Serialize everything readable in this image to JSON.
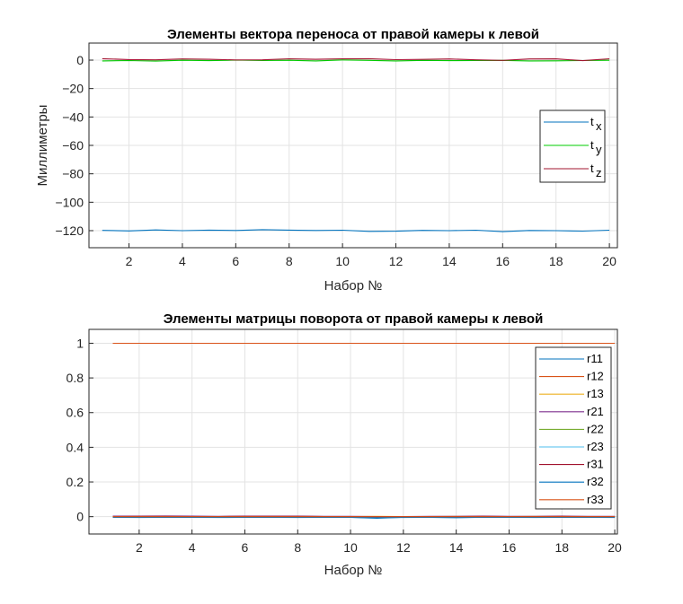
{
  "chart_data": [
    {
      "type": "line",
      "title": "Элементы вектора переноса от правой камеры к левой",
      "xlabel": "Набор №",
      "ylabel": "Миллиметры",
      "xlim": [
        0.5,
        20.3
      ],
      "ylim": [
        -132,
        12
      ],
      "xticks": [
        2,
        4,
        6,
        8,
        10,
        12,
        14,
        16,
        18,
        20
      ],
      "yticks": [
        -120,
        -100,
        -80,
        -60,
        -40,
        -20,
        0
      ],
      "grid": true,
      "legend_position": "right",
      "x": [
        1,
        2,
        3,
        4,
        5,
        6,
        7,
        8,
        9,
        10,
        11,
        12,
        13,
        14,
        15,
        16,
        17,
        18,
        19,
        20
      ],
      "series": [
        {
          "name": "t",
          "subscript": "x",
          "color": "#0072BD",
          "values": [
            -119.8,
            -120.2,
            -119.5,
            -120.0,
            -119.6,
            -119.9,
            -119.3,
            -119.6,
            -119.9,
            -119.7,
            -120.5,
            -120.4,
            -119.8,
            -120.0,
            -119.7,
            -120.7,
            -119.9,
            -120.0,
            -120.3,
            -119.7
          ]
        },
        {
          "name": "t",
          "subscript": "y",
          "color": "#00CC00",
          "values": [
            -0.6,
            -0.3,
            -0.7,
            -0.1,
            -0.4,
            0.0,
            -0.3,
            -0.1,
            -0.6,
            0.1,
            -0.2,
            -0.6,
            -0.2,
            -0.4,
            -0.3,
            -0.2,
            -0.6,
            -0.5,
            -0.3,
            -0.1
          ]
        },
        {
          "name": "t",
          "subscript": "z",
          "color": "#A2142F",
          "values": [
            1.0,
            0.4,
            0.2,
            0.8,
            0.6,
            0.1,
            0.2,
            0.9,
            0.6,
            0.9,
            1.0,
            0.3,
            0.5,
            0.8,
            0.2,
            -0.2,
            0.8,
            0.9,
            -0.4,
            0.9
          ]
        }
      ]
    },
    {
      "type": "line",
      "title": "Элементы матрицы поворота от правой камеры к левой",
      "xlabel": "Набор №",
      "ylabel": "",
      "xlim": [
        0.1,
        20.1
      ],
      "ylim": [
        -0.1,
        1.08
      ],
      "xticks": [
        2,
        4,
        6,
        8,
        10,
        12,
        14,
        16,
        18,
        20
      ],
      "yticks": [
        0,
        0.2,
        0.4,
        0.6,
        0.8,
        1
      ],
      "grid": true,
      "legend_position": "top-right",
      "x": [
        1,
        2,
        3,
        4,
        5,
        6,
        7,
        8,
        9,
        10,
        11,
        12,
        13,
        14,
        15,
        16,
        17,
        18,
        19,
        20
      ],
      "series": [
        {
          "name": "r11",
          "color": "#0072BD",
          "values": [
            0,
            -0.003,
            -0.002,
            -0.003,
            -0.002,
            -0.002,
            -0.003,
            -0.002,
            -0.003,
            -0.004,
            -0.009,
            -0.003,
            -0.004,
            -0.006,
            -0.003,
            -0.004,
            -0.003,
            -0.003,
            -0.003,
            -0.003
          ]
        },
        {
          "name": "r12",
          "color": "#D95319",
          "values": [
            1,
            1,
            1,
            1,
            1,
            1,
            1,
            1,
            1,
            1,
            1,
            1,
            1,
            1,
            1,
            1,
            1,
            1,
            1,
            1
          ]
        },
        {
          "name": "r13",
          "color": "#EDB120",
          "values": [
            0.002,
            0.001,
            0.002,
            0.001,
            0.001,
            0.002,
            0.001,
            0.002,
            0.001,
            0.001,
            0.002,
            0.001,
            0.001,
            0.002,
            0.001,
            0.001,
            0.002,
            0.001,
            0.001,
            0.001
          ]
        },
        {
          "name": "r21",
          "color": "#7E2F8E",
          "values": [
            0.003,
            0.003,
            0.004,
            0.003,
            0.002,
            0.003,
            0.003,
            0.003,
            0.002,
            0.002,
            0.001,
            0.001,
            0.002,
            0.002,
            0.003,
            0.002,
            0.002,
            0.003,
            0.002,
            0.002
          ]
        },
        {
          "name": "r22",
          "color": "#77AC30",
          "values": [
            0.001,
            0.0,
            0.001,
            0.001,
            0.0,
            0.001,
            0.001,
            0.0,
            0.001,
            0.0,
            0.0,
            0.001,
            0.0,
            0.001,
            0.0,
            0.001,
            0.0,
            0.001,
            0.0,
            0.001
          ]
        },
        {
          "name": "r23",
          "color": "#4DBEEE",
          "values": [
            -0.001,
            -0.002,
            -0.001,
            -0.002,
            -0.002,
            -0.001,
            -0.002,
            -0.002,
            -0.001,
            -0.002,
            -0.003,
            -0.002,
            -0.001,
            -0.002,
            -0.002,
            -0.001,
            -0.002,
            -0.002,
            -0.001,
            -0.002
          ]
        },
        {
          "name": "r31",
          "color": "#A2142F",
          "values": [
            0.001,
            0.002,
            0.002,
            0.001,
            0.001,
            0.002,
            0.002,
            0.002,
            0.001,
            0.001,
            0.0,
            0.001,
            0.001,
            0.001,
            0.002,
            0.001,
            0.001,
            0.002,
            0.001,
            0.001
          ]
        },
        {
          "name": "r32",
          "color": "#0072BD",
          "values": [
            -0.004,
            -0.005,
            -0.004,
            -0.004,
            -0.005,
            -0.004,
            -0.004,
            -0.005,
            -0.004,
            -0.004,
            -0.006,
            -0.005,
            -0.004,
            -0.005,
            -0.004,
            -0.004,
            -0.005,
            -0.004,
            -0.004,
            -0.005
          ]
        },
        {
          "name": "r33",
          "color": "#D95319",
          "values": [
            0.0,
            0.0,
            0.0,
            0.0,
            0.0,
            0.0,
            0.0,
            0.0,
            0.0,
            0.0,
            0.0,
            0.0,
            0.0,
            0.0,
            0.0,
            0.0,
            0.0,
            0.0,
            0.0,
            0.0
          ]
        }
      ]
    }
  ]
}
